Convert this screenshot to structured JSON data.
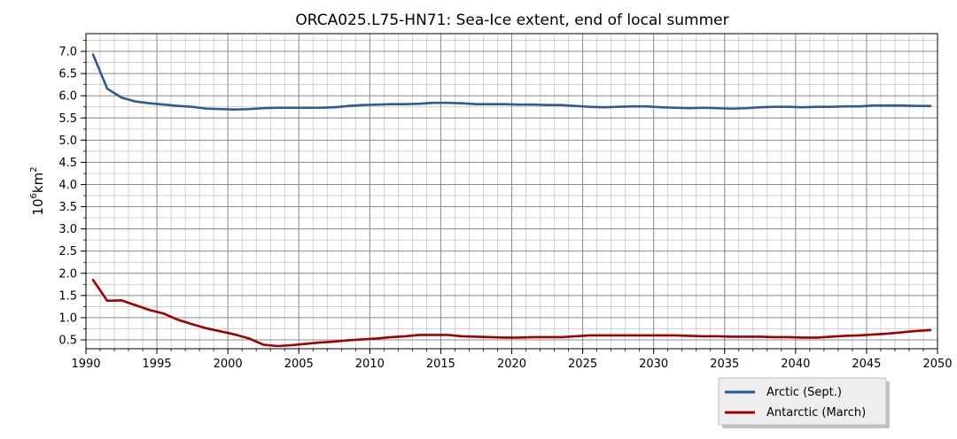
{
  "chart_data": {
    "type": "line",
    "title": "ORCA025.L75-HN71: Sea-Ice extent, end of local summer",
    "ylabel_base": "10",
    "ylabel_exp": "6",
    "ylabel_unit": "km",
    "ylabel_unit_exp": "2",
    "xlim": [
      1990,
      2050
    ],
    "ylim": [
      0.3,
      7.4
    ],
    "x_ticks": [
      1990,
      1995,
      2000,
      2005,
      2010,
      2015,
      2020,
      2025,
      2030,
      2035,
      2040,
      2045,
      2050
    ],
    "y_ticks": [
      0.5,
      1.0,
      1.5,
      2.0,
      2.5,
      3.0,
      3.5,
      4.0,
      4.5,
      5.0,
      5.5,
      6.0,
      6.5,
      7.0
    ],
    "x_minor_step": 1,
    "y_minor_step": 0.25,
    "grid": true,
    "legend_position": "below-right",
    "x": [
      1990.5,
      1991.5,
      1992.5,
      1993.5,
      1994.5,
      1995.5,
      1996.5,
      1997.5,
      1998.5,
      1999.5,
      2000.5,
      2001.5,
      2002.5,
      2003.5,
      2004.5,
      2005.5,
      2006.5,
      2007.5,
      2008.5,
      2009.5,
      2010.5,
      2011.5,
      2012.5,
      2013.5,
      2014.5,
      2015.5,
      2016.5,
      2017.5,
      2018.5,
      2019.5,
      2020.5,
      2021.5,
      2022.5,
      2023.5,
      2024.5,
      2025.5,
      2026.5,
      2027.5,
      2028.5,
      2029.5,
      2030.5,
      2031.5,
      2032.5,
      2033.5,
      2034.5,
      2035.5,
      2036.5,
      2037.5,
      2038.5,
      2039.5,
      2040.5,
      2041.5,
      2042.5,
      2043.5,
      2044.5,
      2045.5,
      2046.5,
      2047.5,
      2048.5,
      2049.5
    ],
    "series": [
      {
        "name": "Arctic (Sept.)",
        "color": "#2f5a8f",
        "values": [
          6.93,
          6.16,
          5.96,
          5.87,
          5.83,
          5.8,
          5.77,
          5.75,
          5.71,
          5.7,
          5.69,
          5.7,
          5.72,
          5.73,
          5.73,
          5.73,
          5.73,
          5.74,
          5.77,
          5.79,
          5.8,
          5.81,
          5.81,
          5.82,
          5.84,
          5.84,
          5.83,
          5.81,
          5.81,
          5.81,
          5.8,
          5.8,
          5.79,
          5.79,
          5.77,
          5.75,
          5.74,
          5.75,
          5.76,
          5.76,
          5.74,
          5.73,
          5.72,
          5.73,
          5.72,
          5.71,
          5.72,
          5.74,
          5.75,
          5.75,
          5.74,
          5.75,
          5.75,
          5.76,
          5.76,
          5.78,
          5.78,
          5.78,
          5.77,
          5.77
        ]
      },
      {
        "name": "Antarctic (March)",
        "color": "#a00000",
        "values": [
          1.85,
          1.38,
          1.39,
          1.28,
          1.17,
          1.09,
          0.95,
          0.85,
          0.76,
          0.69,
          0.62,
          0.53,
          0.39,
          0.36,
          0.38,
          0.41,
          0.44,
          0.46,
          0.49,
          0.51,
          0.53,
          0.56,
          0.58,
          0.61,
          0.61,
          0.61,
          0.58,
          0.57,
          0.56,
          0.55,
          0.55,
          0.56,
          0.56,
          0.56,
          0.58,
          0.6,
          0.6,
          0.6,
          0.6,
          0.6,
          0.6,
          0.6,
          0.59,
          0.58,
          0.58,
          0.57,
          0.57,
          0.57,
          0.56,
          0.56,
          0.55,
          0.55,
          0.57,
          0.59,
          0.6,
          0.62,
          0.64,
          0.67,
          0.7,
          0.72
        ]
      }
    ]
  }
}
